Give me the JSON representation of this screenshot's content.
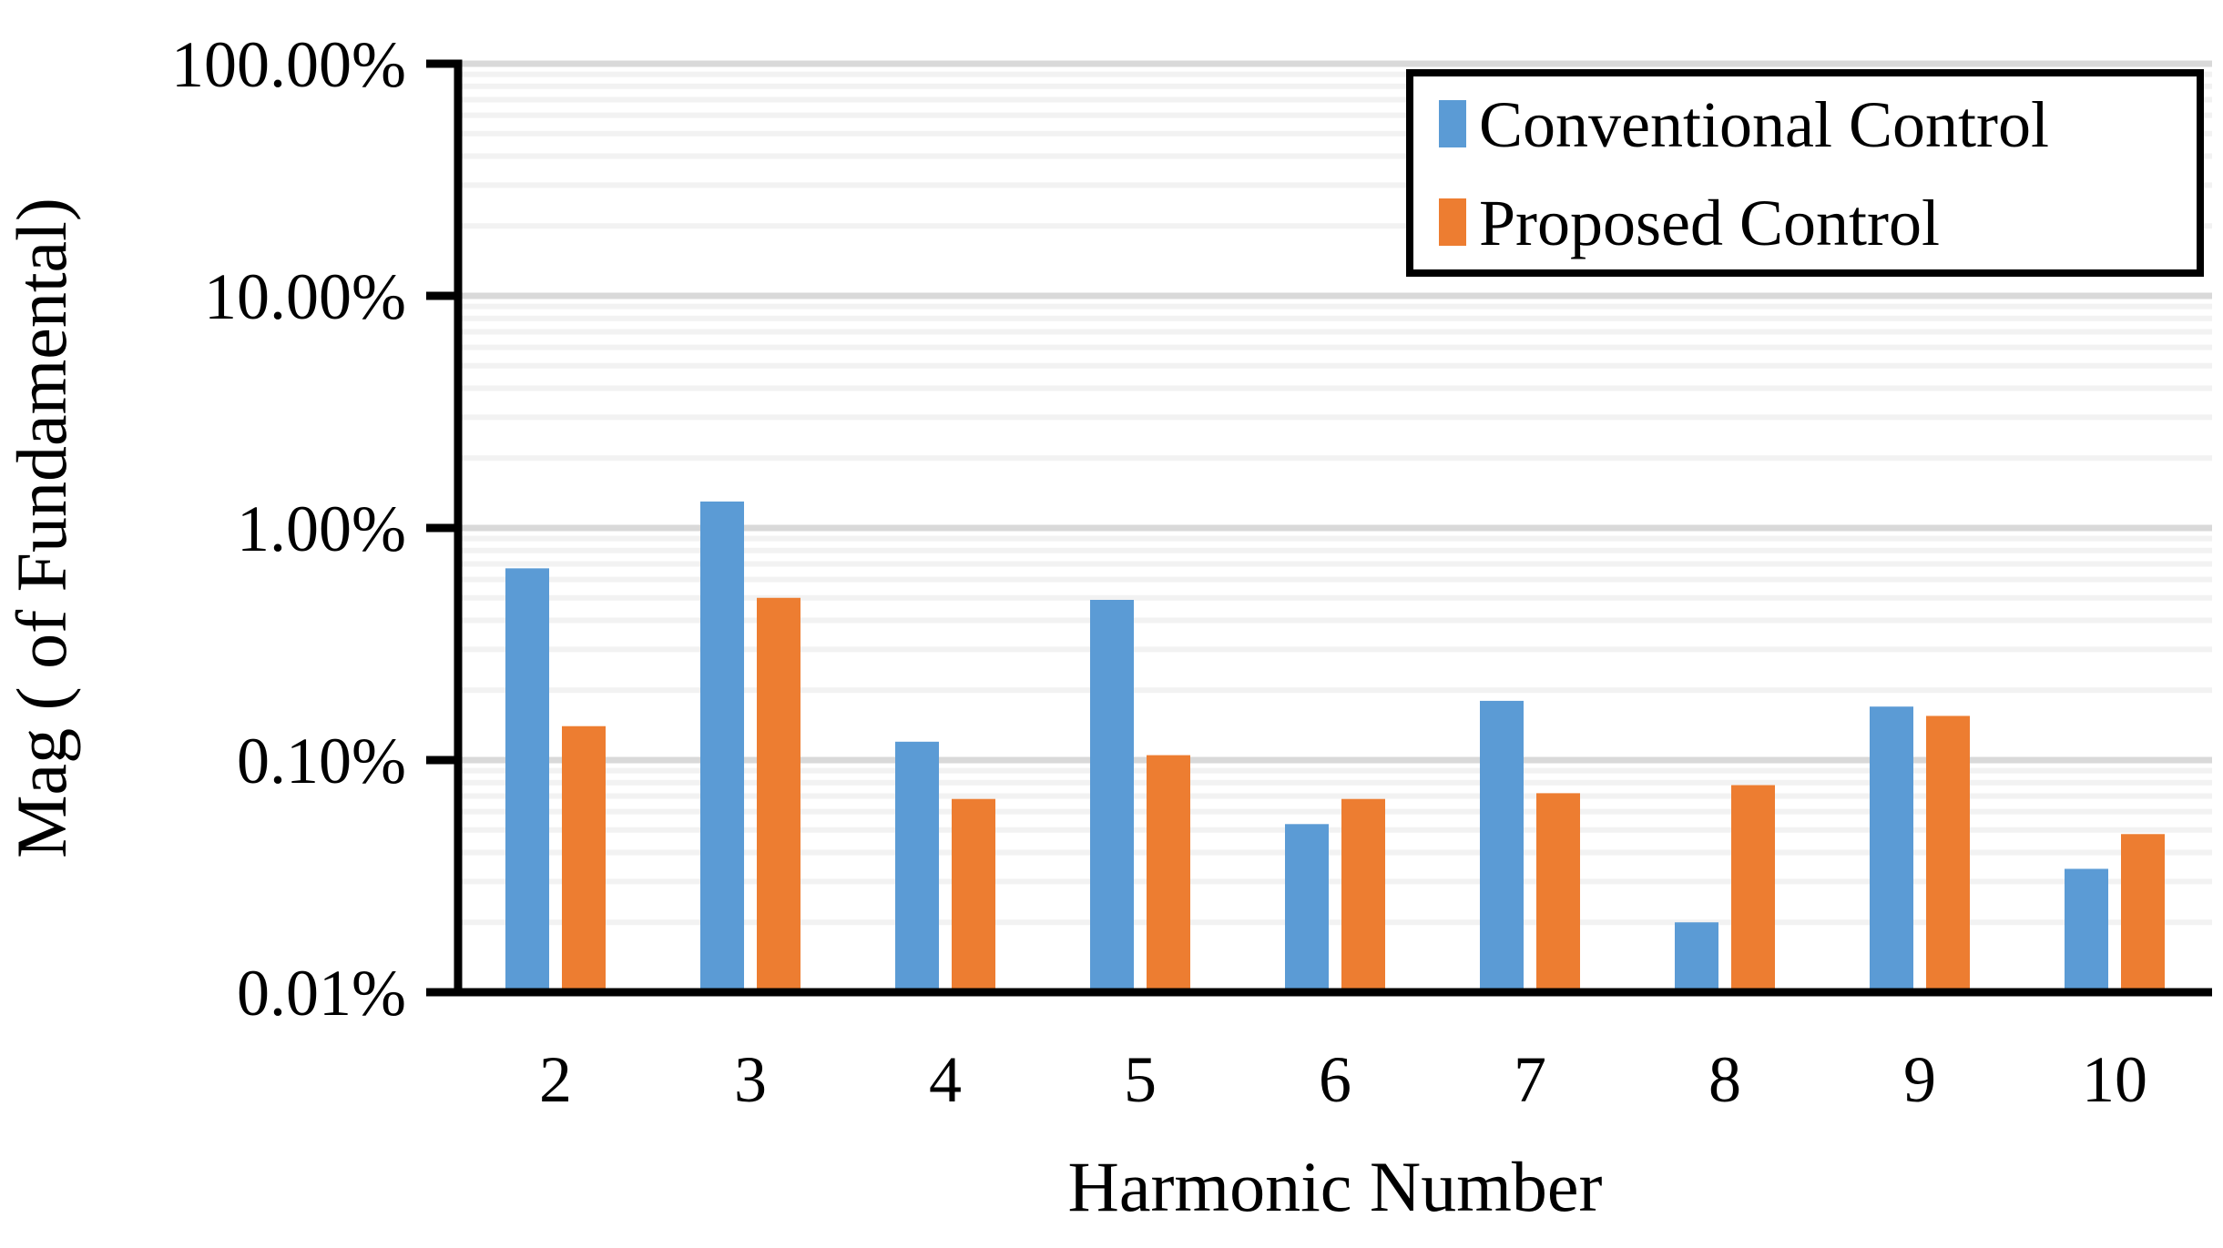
{
  "chart_data": {
    "type": "bar",
    "title": "",
    "xlabel": "Harmonic Number",
    "ylabel": "Mag ( of Fundamental)",
    "y_scale": "log",
    "ylim_percent": [
      0.01,
      100
    ],
    "y_ticks_top_to_bottom": [
      "100.00%",
      "10.00%",
      "1.00%",
      "0.10%",
      "0.01%"
    ],
    "categories": [
      "2",
      "3",
      "4",
      "5",
      "6",
      "7",
      "8",
      "9",
      "10"
    ],
    "series": [
      {
        "name": "Conventional Control",
        "color": "#5B9BD5",
        "values_percent": [
          0.67,
          1.3,
          0.12,
          0.49,
          0.053,
          0.18,
          0.02,
          0.17,
          0.034
        ]
      },
      {
        "name": "Proposed Control",
        "color": "#ED7D31",
        "values_percent": [
          0.14,
          0.5,
          0.068,
          0.105,
          0.068,
          0.072,
          0.078,
          0.155,
          0.048
        ]
      }
    ],
    "legend_position": "top-right",
    "grid": {
      "major_color": "#D9D9D9",
      "minor_color": "#F2F2F2",
      "minor_log_subdivisions": true
    },
    "axis_color": "#000000"
  }
}
